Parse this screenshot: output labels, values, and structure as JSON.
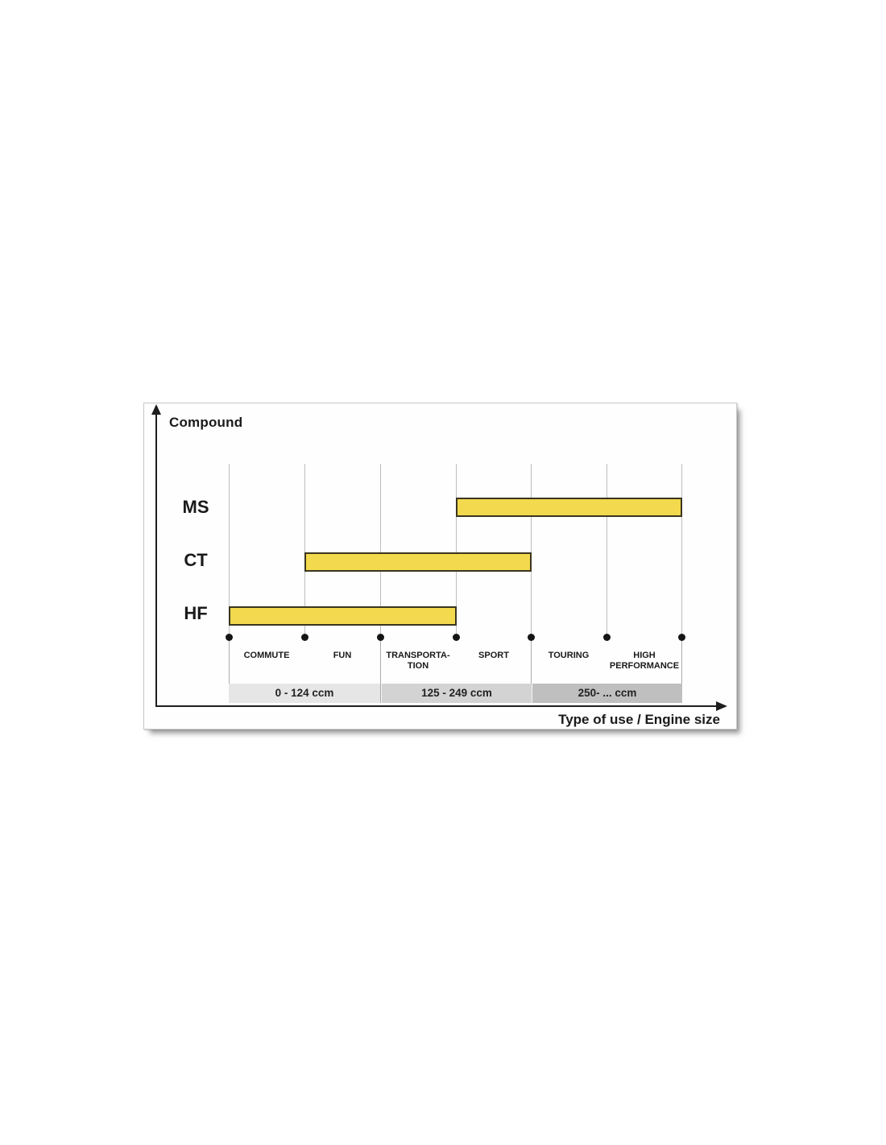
{
  "chart_data": {
    "type": "bar",
    "subtype": "horizontal-range",
    "title": "",
    "ylabel": "Compound",
    "xlabel": "Type of use / Engine size",
    "x_categories": [
      "COMMUTE",
      "FUN",
      "TRANSPORTA-TION",
      "SPORT",
      "TOURING",
      "HIGH PERFORMANCE"
    ],
    "x_gridline_count": 7,
    "series": [
      {
        "name": "MS",
        "start": 3,
        "end": 6,
        "covers": [
          "SPORT",
          "TOURING",
          "HIGH PERFORMANCE"
        ]
      },
      {
        "name": "CT",
        "start": 1,
        "end": 4,
        "covers": [
          "FUN",
          "TRANSPORTA-TION",
          "SPORT"
        ]
      },
      {
        "name": "HF",
        "start": 0,
        "end": 3,
        "covers": [
          "COMMUTE",
          "FUN",
          "TRANSPORTA-TION"
        ]
      }
    ],
    "engine_bands": [
      {
        "label": "0 - 124 ccm",
        "start": 0,
        "end": 2,
        "color": "#e6e6e6"
      },
      {
        "label": "125 - 249 ccm",
        "start": 2,
        "end": 4,
        "color": "#d3d3d3"
      },
      {
        "label": "250- ... ccm",
        "start": 4,
        "end": 6,
        "color": "#bfbfbf"
      }
    ],
    "bar_color": "#F2D94E",
    "bar_border_color": "#3a351f",
    "axis_color": "#1e1e1e",
    "gridline_color": "#bdbdbd",
    "grid": "vertical-only",
    "legend": "none"
  }
}
